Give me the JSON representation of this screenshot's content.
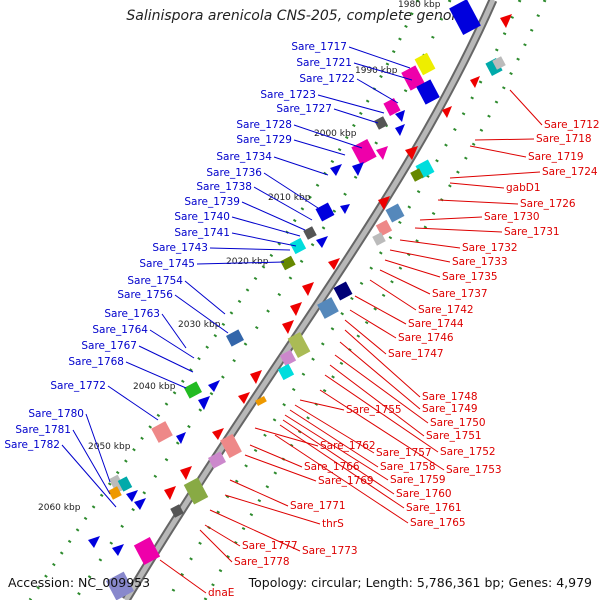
{
  "title": "Salinispora arenicola CNS-205, complete genome",
  "footer": {
    "accession": "Accession: NC_009953",
    "topology": "Topology: circular; Length: 5,786,361 bp; Genes: 4,979"
  },
  "colors": {
    "left_label": "#0000cc",
    "right_label": "#dd0000",
    "backbone": "#aaaaaa",
    "tick_dots": "#2e8b2e"
  },
  "kbp_labels": [
    "1980 kbp",
    "1990 kbp",
    "2000 kbp",
    "2010 kbp",
    "2020 kbp",
    "2030 kbp",
    "2040 kbp",
    "2050 kbp",
    "2060 kbp"
  ],
  "left_genes": [
    "Sare_1717",
    "Sare_1721",
    "Sare_1722",
    "Sare_1723",
    "Sare_1727",
    "Sare_1728",
    "Sare_1729",
    "Sare_1734",
    "Sare_1736",
    "Sare_1738",
    "Sare_1739",
    "Sare_1740",
    "Sare_1741",
    "Sare_1743",
    "Sare_1745",
    "Sare_1754",
    "Sare_1756",
    "Sare_1763",
    "Sare_1764",
    "Sare_1767",
    "Sare_1768",
    "Sare_1772",
    "Sare_1780",
    "Sare_1781",
    "Sare_1782"
  ],
  "right_genes": [
    "Sare_1712",
    "Sare_1718",
    "Sare_1719",
    "Sare_1724",
    "gabD1",
    "Sare_1726",
    "Sare_1730",
    "Sare_1731",
    "Sare_1732",
    "Sare_1733",
    "Sare_1735",
    "Sare_1737",
    "Sare_1742",
    "Sare_1744",
    "Sare_1746",
    "Sare_1747",
    "Sare_1748",
    "Sare_1749",
    "Sare_1750",
    "Sare_1751",
    "Sare_1752",
    "Sare_1753",
    "Sare_1755",
    "Sare_1757",
    "Sare_1758",
    "Sare_1759",
    "Sare_1760",
    "Sare_1761",
    "Sare_1762",
    "Sare_1765",
    "Sare_1766",
    "Sare_1769",
    "Sare_1771",
    "thrS",
    "Sare_1773",
    "Sare_1777",
    "Sare_1778",
    "dnaE"
  ]
}
